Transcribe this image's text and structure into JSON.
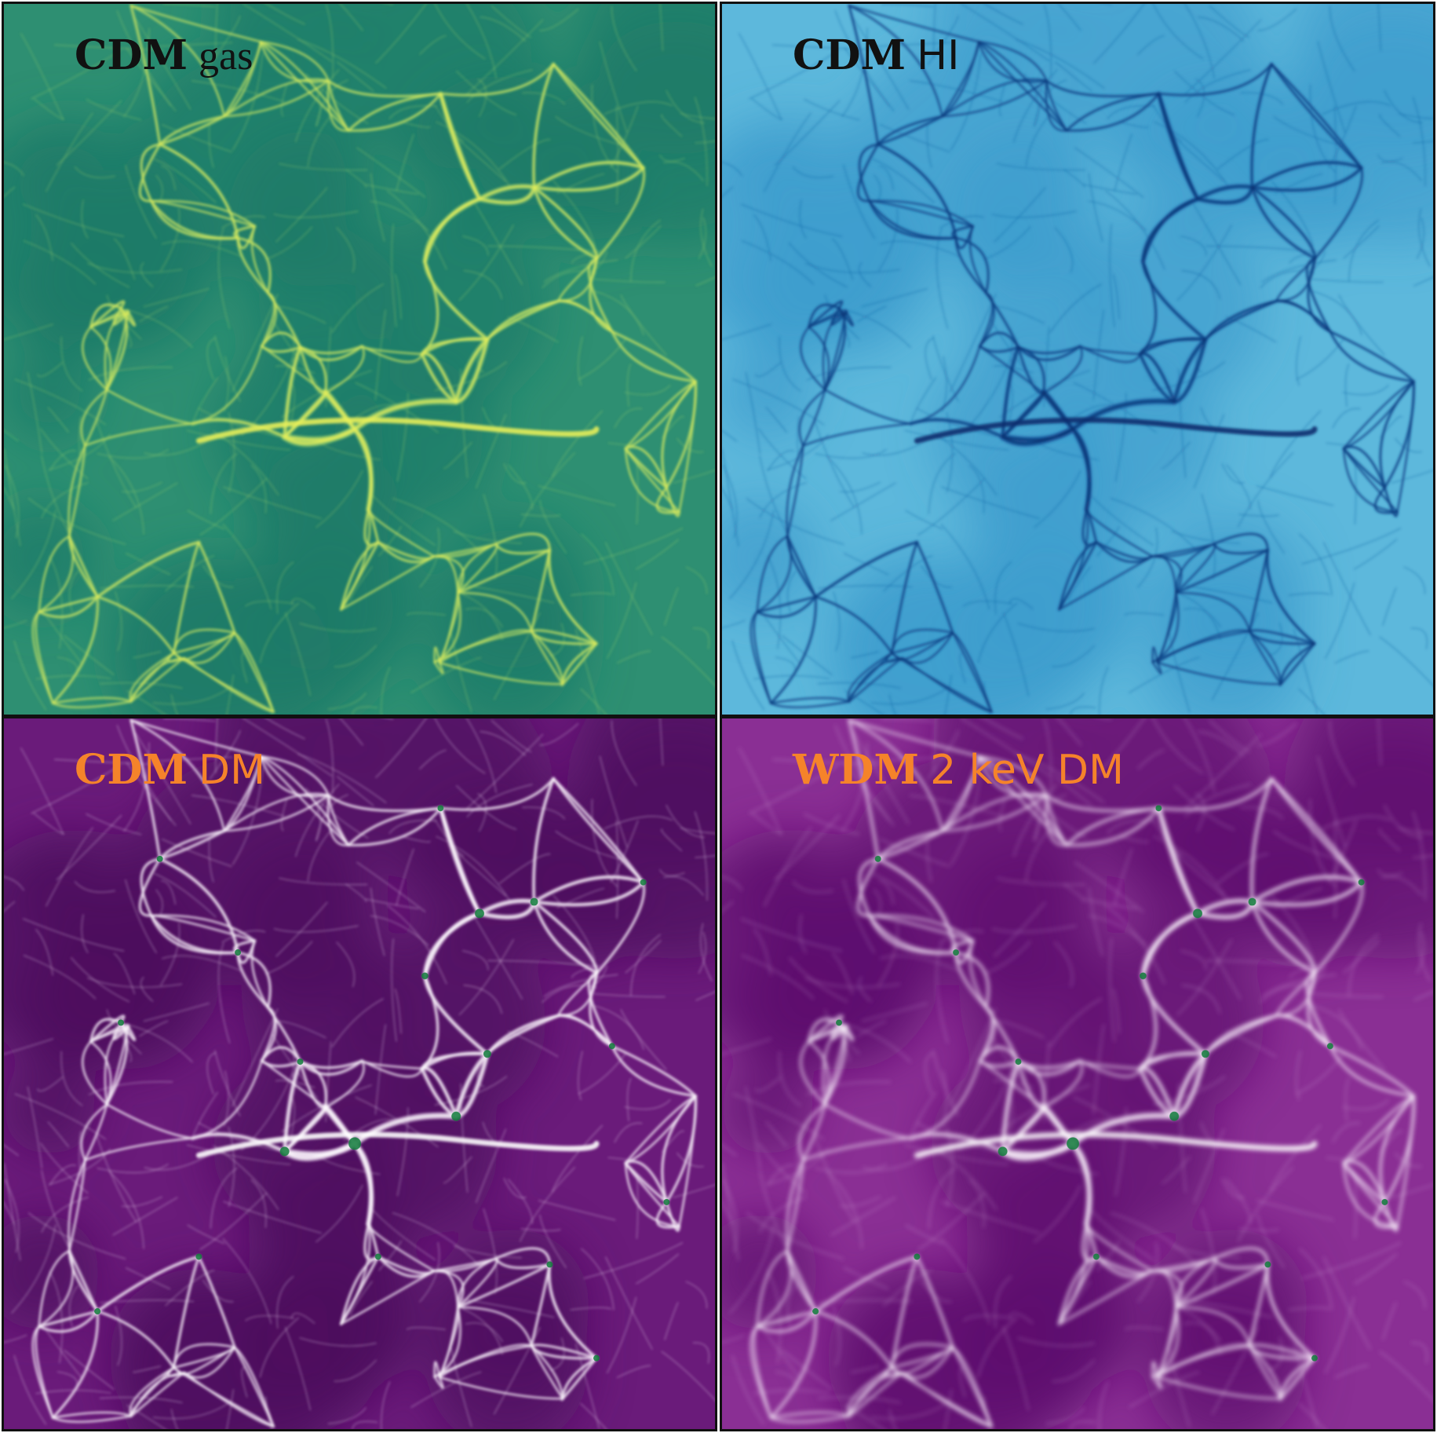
{
  "panels": [
    {
      "id": "cdm-gas",
      "label_model": "CDM",
      "label_field": "gas",
      "label_color": "#111111",
      "colormap": {
        "base": "#2e8f72",
        "dark": "#1f7a68",
        "filament": "#9ed36a",
        "bright": "#e8ef5a"
      }
    },
    {
      "id": "cdm-hi",
      "label_model": "CDM",
      "label_field": "HI",
      "label_color": "#111111",
      "colormap": {
        "base": "#5db8dc",
        "dark": "#3e9ccd",
        "filament": "#1c5aa0",
        "bright": "#0b2f6e"
      }
    },
    {
      "id": "cdm-dm",
      "label_model": "CDM",
      "label_field": "DM",
      "label_color": "#f5832a",
      "colormap": {
        "base": "#6a1b7a",
        "dark": "#4d0c5e",
        "filament": "#e9d6ee",
        "bright": "#ffffff",
        "halo": "#0f7a3a"
      }
    },
    {
      "id": "wdm-dm",
      "label_model": "WDM",
      "label_field": "2 keV DM",
      "label_color": "#f5832a",
      "colormap": {
        "base": "#8a2f94",
        "dark": "#5e0f6e",
        "filament": "#e4c9ea",
        "bright": "#ffffff",
        "halo": "#0f7a3a"
      }
    }
  ]
}
